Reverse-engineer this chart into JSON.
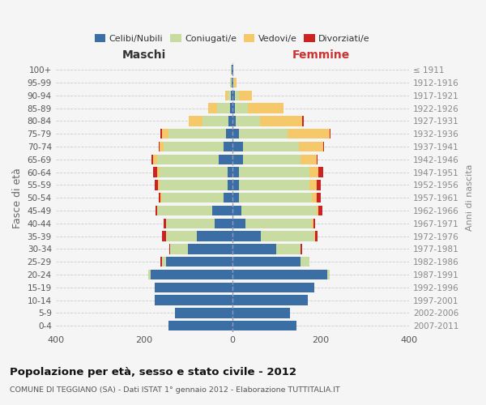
{
  "age_groups": [
    "0-4",
    "5-9",
    "10-14",
    "15-19",
    "20-24",
    "25-29",
    "30-34",
    "35-39",
    "40-44",
    "45-49",
    "50-54",
    "55-59",
    "60-64",
    "65-69",
    "70-74",
    "75-79",
    "80-84",
    "85-89",
    "90-94",
    "95-99",
    "100+"
  ],
  "birth_years": [
    "2007-2011",
    "2002-2006",
    "1997-2001",
    "1992-1996",
    "1987-1991",
    "1982-1986",
    "1977-1981",
    "1972-1976",
    "1967-1971",
    "1962-1966",
    "1957-1961",
    "1952-1956",
    "1947-1951",
    "1942-1946",
    "1937-1941",
    "1932-1936",
    "1927-1931",
    "1922-1926",
    "1917-1921",
    "1912-1916",
    "≤ 1911"
  ],
  "maschi": {
    "celibi": [
      145,
      130,
      175,
      175,
      185,
      150,
      100,
      80,
      40,
      45,
      20,
      10,
      10,
      30,
      20,
      15,
      8,
      5,
      3,
      2,
      2
    ],
    "coniugati": [
      0,
      0,
      0,
      0,
      5,
      10,
      40,
      70,
      110,
      125,
      140,
      155,
      155,
      140,
      135,
      130,
      60,
      30,
      8,
      3,
      1
    ],
    "vedovi": [
      0,
      0,
      0,
      0,
      0,
      0,
      0,
      0,
      0,
      0,
      2,
      3,
      5,
      10,
      10,
      15,
      30,
      20,
      5,
      0,
      0
    ],
    "divorziati": [
      0,
      0,
      0,
      0,
      0,
      2,
      2,
      10,
      5,
      3,
      5,
      8,
      10,
      3,
      2,
      2,
      0,
      0,
      0,
      0,
      0
    ]
  },
  "femmine": {
    "nubili": [
      145,
      130,
      170,
      185,
      215,
      155,
      100,
      65,
      30,
      20,
      15,
      15,
      15,
      25,
      25,
      15,
      8,
      5,
      5,
      2,
      2
    ],
    "coniugate": [
      0,
      0,
      0,
      0,
      5,
      20,
      55,
      120,
      150,
      170,
      165,
      160,
      160,
      130,
      125,
      110,
      55,
      30,
      10,
      2,
      1
    ],
    "vedove": [
      0,
      0,
      0,
      0,
      0,
      0,
      0,
      2,
      3,
      5,
      10,
      15,
      20,
      35,
      55,
      95,
      95,
      80,
      30,
      5,
      0
    ],
    "divorziate": [
      0,
      0,
      0,
      0,
      0,
      0,
      3,
      5,
      5,
      8,
      10,
      10,
      10,
      3,
      3,
      2,
      3,
      0,
      0,
      0,
      0
    ]
  },
  "color_celibi": "#3a6ea5",
  "color_coniugati": "#c8dba0",
  "color_vedovi": "#f5c86a",
  "color_divorziati": "#cc2222",
  "title": "Popolazione per età, sesso e stato civile - 2012",
  "subtitle": "COMUNE DI TEGGIANO (SA) - Dati ISTAT 1° gennaio 2012 - Elaborazione TUTTITALIA.IT",
  "xlabel_left": "Maschi",
  "xlabel_right": "Femmine",
  "ylabel_left": "Fasce di età",
  "ylabel_right": "Anni di nascita",
  "xlim": 400,
  "background_color": "#f5f5f5",
  "bar_height": 0.78
}
